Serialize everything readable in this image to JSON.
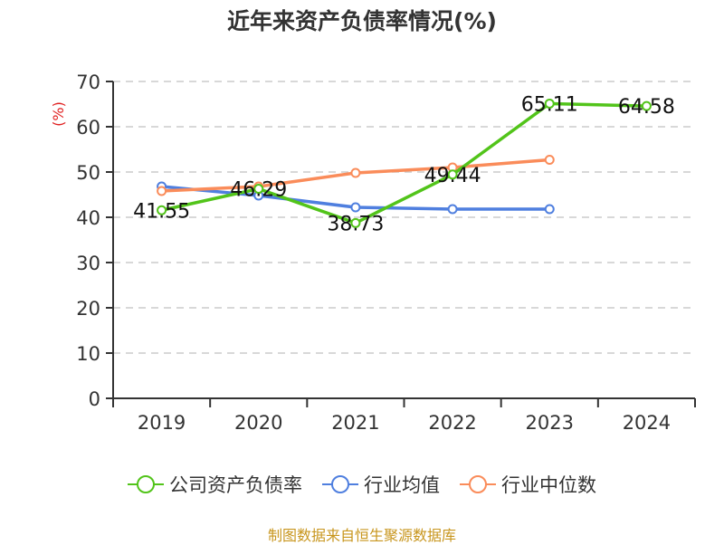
{
  "chart_data": {
    "type": "line",
    "title": "近年来资产负债率情况(%)",
    "xlabel": "",
    "ylabel": "(%)",
    "ylim": [
      0,
      70
    ],
    "yticks": [
      0,
      10,
      20,
      30,
      40,
      50,
      60,
      70
    ],
    "grid": "horizontal-dashed",
    "legend_position": "bottom",
    "categories": [
      "2019",
      "2020",
      "2021",
      "2022",
      "2023",
      "2024"
    ],
    "series": [
      {
        "name": "公司资产负债率",
        "color": "#52c41a",
        "values": [
          41.55,
          46.29,
          38.73,
          49.44,
          65.11,
          64.58
        ],
        "labels": [
          "41.55",
          "46.29",
          "38.73",
          "49.44",
          "65.11",
          "64.58"
        ]
      },
      {
        "name": "行业均值",
        "color": "#4f7fdf",
        "values": [
          46.8,
          44.8,
          42.2,
          41.8,
          41.8,
          null
        ]
      },
      {
        "name": "行业中位数",
        "color": "#fa8c5a",
        "values": [
          45.8,
          46.8,
          49.8,
          51.0,
          52.7,
          null
        ]
      }
    ]
  },
  "title": "近年来资产负债率情况(%)",
  "y_unit": "(%)",
  "legend": [
    {
      "label": "公司资产负债率",
      "color": "#52c41a"
    },
    {
      "label": "行业均值",
      "color": "#4f7fdf"
    },
    {
      "label": "行业中位数",
      "color": "#fa8c5a"
    }
  ],
  "source": "制图数据来自恒生聚源数据库"
}
